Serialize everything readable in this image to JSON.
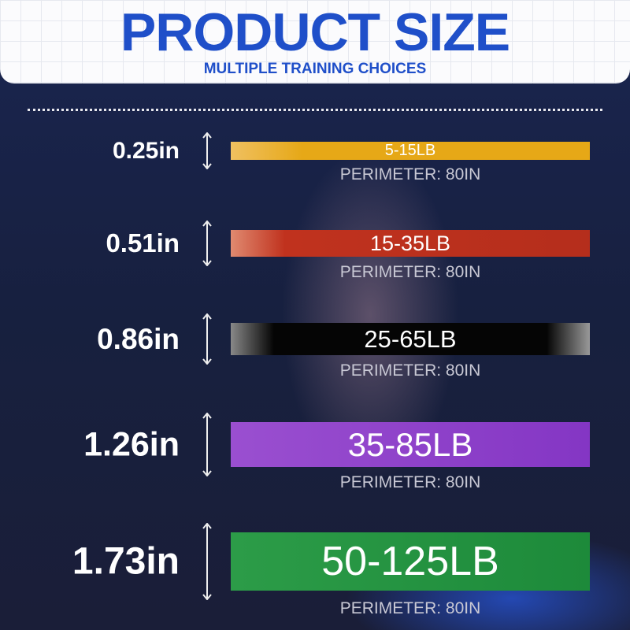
{
  "header": {
    "title": "PRODUCT SIZE",
    "subtitle": "MULTIPLE TRAINING CHOICES"
  },
  "bands": [
    {
      "width": "0.25in",
      "resistance": "5-15LB",
      "perimeter": "PERIMETER: 80IN"
    },
    {
      "width": "0.51in",
      "resistance": "15-35LB",
      "perimeter": "PERIMETER: 80IN"
    },
    {
      "width": "0.86in",
      "resistance": "25-65LB",
      "perimeter": "PERIMETER: 80IN"
    },
    {
      "width": "1.26in",
      "resistance": "35-85LB",
      "perimeter": "PERIMETER: 80IN"
    },
    {
      "width": "1.73in",
      "resistance": "50-125LB",
      "perimeter": "PERIMETER: 80IN"
    }
  ]
}
